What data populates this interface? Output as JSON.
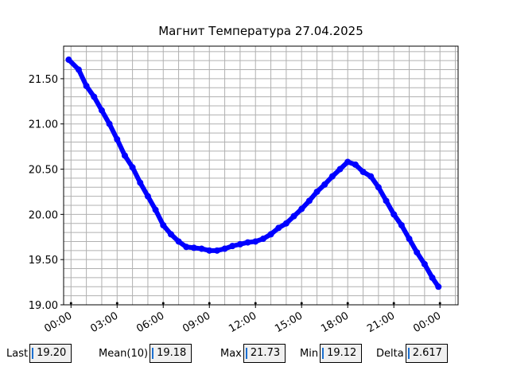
{
  "chart_data": {
    "type": "scatter",
    "title": "Магнит Температура 27.04.2025",
    "x": [
      -0.15,
      0.5,
      1,
      1.5,
      2,
      2.5,
      3,
      3.5,
      4,
      4.5,
      5,
      5.5,
      6,
      6.5,
      7,
      7.5,
      8,
      8.5,
      9,
      9.5,
      10,
      10.5,
      11,
      11.5,
      12,
      12.5,
      13,
      13.5,
      14,
      14.5,
      15,
      15.5,
      16,
      16.5,
      17,
      17.5,
      18,
      18.5,
      19,
      19.5,
      20,
      20.5,
      21,
      21.5,
      22,
      22.5,
      23,
      23.5,
      23.9
    ],
    "series": [
      {
        "color": "#0000ff",
        "values": [
          21.71,
          21.6,
          21.42,
          21.3,
          21.15,
          21.0,
          20.83,
          20.65,
          20.52,
          20.35,
          20.2,
          20.05,
          19.88,
          19.78,
          19.7,
          19.64,
          19.63,
          19.62,
          19.6,
          19.6,
          19.62,
          19.65,
          19.67,
          19.69,
          19.7,
          19.73,
          19.78,
          19.85,
          19.9,
          19.98,
          20.06,
          20.15,
          20.25,
          20.33,
          20.42,
          20.5,
          20.58,
          20.55,
          20.47,
          20.42,
          20.3,
          20.15,
          20.0,
          19.88,
          19.73,
          19.58,
          19.45,
          19.3,
          19.2
        ]
      }
    ],
    "xlim": [
      -0.48,
      25.18
    ],
    "ylim": [
      19.0,
      21.86
    ],
    "xticks": [
      {
        "value": 0,
        "label": "00:00"
      },
      {
        "value": 3,
        "label": "03:00"
      },
      {
        "value": 6,
        "label": "06:00"
      },
      {
        "value": 9,
        "label": "09:00"
      },
      {
        "value": 12,
        "label": "12:00"
      },
      {
        "value": 15,
        "label": "15:00"
      },
      {
        "value": 18,
        "label": "18:00"
      },
      {
        "value": 21,
        "label": "21:00"
      },
      {
        "value": 24,
        "label": "00:00"
      }
    ],
    "yticks": [
      {
        "value": 19,
        "label": "19.00"
      },
      {
        "value": 19.5,
        "label": "19.50"
      },
      {
        "value": 20,
        "label": "20.00"
      },
      {
        "value": 20.5,
        "label": "20.50"
      },
      {
        "value": 21,
        "label": "21.00"
      },
      {
        "value": 21.5,
        "label": "21.50"
      }
    ],
    "xminorticks": [
      0,
      1,
      2,
      3,
      4,
      5,
      6,
      7,
      8,
      9,
      10,
      11,
      12,
      13,
      14,
      15,
      16,
      17,
      18,
      19,
      20,
      21,
      22,
      23,
      24,
      25
    ],
    "yminorticks": [
      19.1,
      19.2,
      19.3,
      19.4,
      19.5,
      19.6,
      19.7,
      19.8,
      19.9,
      20.0,
      20.1,
      20.2,
      20.3,
      20.4,
      20.5,
      20.6,
      20.7,
      20.8,
      20.9,
      21.0,
      21.1,
      21.2,
      21.3,
      21.4,
      21.5,
      21.6,
      21.7,
      21.8
    ],
    "grid": true
  },
  "stats": [
    {
      "label": "Last",
      "value": "19.20"
    },
    {
      "label": "Mean(10)",
      "value": "19.18"
    },
    {
      "label": "Max",
      "value": "21.73"
    },
    {
      "label": "Min",
      "value": "19.12"
    },
    {
      "label": "Delta",
      "value": "2.617"
    }
  ]
}
